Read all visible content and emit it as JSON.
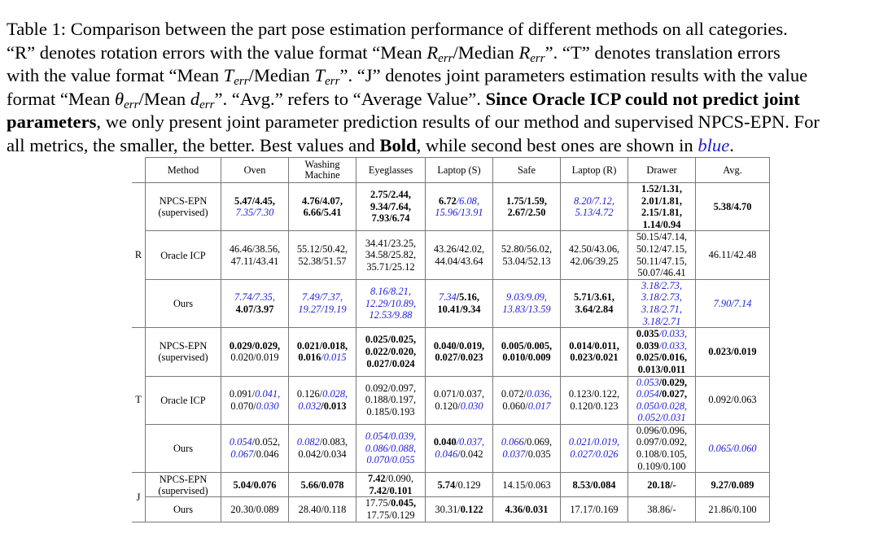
{
  "caption": {
    "label": "Table 1:",
    "text_1": "Comparison between the part pose estimation performance of different methods on all categories.",
    "text_2a": "“R” denotes rotation errors with the value format “Mean ",
    "text_2b": "/Median ",
    "text_2c": "”. “T” denotes translation errors",
    "text_3a": "with the value format “Mean ",
    "text_3b": "/Median ",
    "text_3c": "”. “J” denotes joint parameters estimation results with the value",
    "text_4a": "format “Mean ",
    "text_4b": "/Mean ",
    "text_4c": "”. “Avg.” refers to “Average Value”. ",
    "text_4d": "Since Oracle ICP could not predict joint",
    "text_5a": "parameters",
    "text_5b": ", we only present joint parameter prediction results of our method and supervised NPCS-EPN. For",
    "text_6a": "all metrics, the smaller, the better. Best values and ",
    "text_6b": "Bold",
    "text_6c": ", while second best ones are shown in ",
    "text_6d": "blue",
    "text_6e": ".",
    "sym_R": "R",
    "sym_T": "T",
    "sym_theta": "θ",
    "sym_d": "d",
    "sub_err": "err"
  },
  "table": {
    "headers": [
      "Method",
      "Oven",
      "Washing Machine",
      "Eyeglasses",
      "Laptop (S)",
      "Safe",
      "Laptop (R)",
      "Drawer",
      "Avg."
    ],
    "groups": [
      "R",
      "T",
      "J"
    ],
    "methods": {
      "npcs": "NPCS-EPN (supervised)",
      "icp": "Oracle ICP",
      "ours": "Ours"
    },
    "rows": [
      {
        "group": "R",
        "method": "npcs",
        "cells": [
          [
            [
              [
                "5.47/4.45,",
                "b"
              ]
            ],
            [
              [
                "7.35/7.30",
                "u"
              ]
            ]
          ],
          [
            [
              [
                "4.76/4.07,",
                "b"
              ]
            ],
            [
              [
                "6.66/5.41",
                "b"
              ]
            ]
          ],
          [
            [
              [
                "2.75/2.44,",
                "b"
              ]
            ],
            [
              [
                "9.34/7.64,",
                "b"
              ]
            ],
            [
              [
                "7.93/6.74",
                "b"
              ]
            ]
          ],
          [
            [
              [
                "6.72",
                "b"
              ],
              [
                "/6.08,",
                "u"
              ]
            ],
            [
              [
                "15.96/13.91",
                "u"
              ]
            ]
          ],
          [
            [
              [
                "1.75/1.59,",
                "b"
              ]
            ],
            [
              [
                "2.67/2.50",
                "b"
              ]
            ]
          ],
          [
            [
              [
                "8.20/7.12,",
                "u"
              ]
            ],
            [
              [
                "5.13/4.72",
                "u"
              ]
            ]
          ],
          [
            [
              [
                "1.52/1.31,",
                "b"
              ]
            ],
            [
              [
                "2.01/1.81,",
                "b"
              ]
            ],
            [
              [
                "2.15/1.81,",
                "b"
              ]
            ],
            [
              [
                "1.14/0.94",
                "b"
              ]
            ]
          ],
          [
            [
              [
                "5.38/4.70",
                "b"
              ]
            ]
          ]
        ]
      },
      {
        "group": "R",
        "method": "icp",
        "cells": [
          [
            [
              [
                "46.46/38.56,",
                ""
              ]
            ],
            [
              [
                "47.11/43.41",
                ""
              ]
            ]
          ],
          [
            [
              [
                "55.12/50.42,",
                ""
              ]
            ],
            [
              [
                "52.38/51.57",
                ""
              ]
            ]
          ],
          [
            [
              [
                "34.41/23.25,",
                ""
              ]
            ],
            [
              [
                "34.58/25.82,",
                ""
              ]
            ],
            [
              [
                "35.71/25.12",
                ""
              ]
            ]
          ],
          [
            [
              [
                "43.26/42.02,",
                ""
              ]
            ],
            [
              [
                "44.04/43.64",
                ""
              ]
            ]
          ],
          [
            [
              [
                "52.80/56.02,",
                ""
              ]
            ],
            [
              [
                "53.04/52.13",
                ""
              ]
            ]
          ],
          [
            [
              [
                "42.50/43.06,",
                ""
              ]
            ],
            [
              [
                "42.06/39.25",
                ""
              ]
            ]
          ],
          [
            [
              [
                "50.15/47.14,",
                ""
              ]
            ],
            [
              [
                "50.12/47.15,",
                ""
              ]
            ],
            [
              [
                "50.11/47.15,",
                ""
              ]
            ],
            [
              [
                "50.07/46.41",
                ""
              ]
            ]
          ],
          [
            [
              [
                "46.11/42.48",
                ""
              ]
            ]
          ]
        ]
      },
      {
        "group": "R",
        "method": "ours",
        "cells": [
          [
            [
              [
                "7.74/7.35,",
                "u"
              ]
            ],
            [
              [
                "4.07/3.97",
                "b"
              ]
            ]
          ],
          [
            [
              [
                "7.49/7.37,",
                "u"
              ]
            ],
            [
              [
                "19.27/19.19",
                "u"
              ]
            ]
          ],
          [
            [
              [
                "8.16/8.21,",
                "u"
              ]
            ],
            [
              [
                "12.29/10.89,",
                "u"
              ]
            ],
            [
              [
                "12.53/9.88",
                "u"
              ]
            ]
          ],
          [
            [
              [
                "7.34",
                "u"
              ],
              [
                "/5.16,",
                "b"
              ]
            ],
            [
              [
                "10.41/9.34",
                "b"
              ]
            ]
          ],
          [
            [
              [
                "9.03/9.09,",
                "u"
              ]
            ],
            [
              [
                "13.83/13.59",
                "u"
              ]
            ]
          ],
          [
            [
              [
                "5.71/3.61,",
                "b"
              ]
            ],
            [
              [
                "3.64/2.84",
                "b"
              ]
            ]
          ],
          [
            [
              [
                "3.18/2.73,",
                "u"
              ]
            ],
            [
              [
                "3.18/2.73,",
                "u"
              ]
            ],
            [
              [
                "3.18/2.71,",
                "u"
              ]
            ],
            [
              [
                "3.18/2.71",
                "u"
              ]
            ]
          ],
          [
            [
              [
                "7.90/7.14",
                "u"
              ]
            ]
          ]
        ]
      },
      {
        "group": "T",
        "method": "npcs",
        "cells": [
          [
            [
              [
                "0.029/0.029,",
                "b"
              ]
            ],
            [
              [
                "0.020/0.019",
                ""
              ]
            ]
          ],
          [
            [
              [
                "0.021/0.018,",
                "b"
              ]
            ],
            [
              [
                "0.016",
                "b"
              ],
              [
                "/0.015",
                "u"
              ]
            ]
          ],
          [
            [
              [
                "0.025/0.025,",
                "b"
              ]
            ],
            [
              [
                "0.022/0.020,",
                "b"
              ]
            ],
            [
              [
                "0.027/0.024",
                "b"
              ]
            ]
          ],
          [
            [
              [
                "0.040/0.019,",
                "b"
              ]
            ],
            [
              [
                "0.027/0.023",
                "b"
              ]
            ]
          ],
          [
            [
              [
                "0.005/0.005,",
                "b"
              ]
            ],
            [
              [
                "0.010/0.009",
                "b"
              ]
            ]
          ],
          [
            [
              [
                "0.014/0.011,",
                "b"
              ]
            ],
            [
              [
                "0.023/0.021",
                "b"
              ]
            ]
          ],
          [
            [
              [
                "0.035",
                "b"
              ],
              [
                "/0.033,",
                "u"
              ]
            ],
            [
              [
                "0.039",
                "b"
              ],
              [
                "/0.033,",
                "u"
              ]
            ],
            [
              [
                "0.025/0.016,",
                "b"
              ]
            ],
            [
              [
                "0.013/0.011",
                "b"
              ]
            ]
          ],
          [
            [
              [
                "0.023/0.019",
                "b"
              ]
            ]
          ]
        ]
      },
      {
        "group": "T",
        "method": "icp",
        "cells": [
          [
            [
              [
                "0.091/",
                ""
              ],
              [
                "0.041,",
                "u"
              ]
            ],
            [
              [
                "0.070/",
                ""
              ],
              [
                "0.030",
                "u"
              ]
            ]
          ],
          [
            [
              [
                "0.126/",
                ""
              ],
              [
                "0.028,",
                "u"
              ]
            ],
            [
              [
                "0.032",
                "u"
              ],
              [
                "/0.013",
                "b"
              ]
            ]
          ],
          [
            [
              [
                "0.092/0.097,",
                ""
              ]
            ],
            [
              [
                "0.188/0.197,",
                ""
              ]
            ],
            [
              [
                "0.185/0.193",
                ""
              ]
            ]
          ],
          [
            [
              [
                "0.071/0.037,",
                ""
              ]
            ],
            [
              [
                "0.120/",
                ""
              ],
              [
                "0.030",
                "u"
              ]
            ]
          ],
          [
            [
              [
                "0.072/",
                ""
              ],
              [
                "0.036,",
                "u"
              ]
            ],
            [
              [
                "0.060/",
                ""
              ],
              [
                "0.017",
                "u"
              ]
            ]
          ],
          [
            [
              [
                "0.123/0.122,",
                ""
              ]
            ],
            [
              [
                "0.120/0.123",
                ""
              ]
            ]
          ],
          [
            [
              [
                "0.053",
                "u"
              ],
              [
                "/0.029,",
                "b"
              ]
            ],
            [
              [
                "0.054",
                "u"
              ],
              [
                "/0.027,",
                "b"
              ]
            ],
            [
              [
                "0.050/0.028,",
                "u"
              ]
            ],
            [
              [
                "0.052/0.031",
                "u"
              ]
            ]
          ],
          [
            [
              [
                "0.092/0.063",
                ""
              ]
            ]
          ]
        ]
      },
      {
        "group": "T",
        "method": "ours",
        "cells": [
          [
            [
              [
                "0.054",
                "u"
              ],
              [
                "/0.052,",
                ""
              ]
            ],
            [
              [
                "0.067",
                "u"
              ],
              [
                "/0.046",
                ""
              ]
            ]
          ],
          [
            [
              [
                "0.082",
                "u"
              ],
              [
                "/0.083,",
                ""
              ]
            ],
            [
              [
                "0.042/0.034",
                ""
              ]
            ]
          ],
          [
            [
              [
                "0.054/0.039,",
                "u"
              ]
            ],
            [
              [
                "0.086/0.088,",
                "u"
              ]
            ],
            [
              [
                "0.070/0.055",
                "u"
              ]
            ]
          ],
          [
            [
              [
                "0.040",
                "b"
              ],
              [
                "/0.037,",
                "u"
              ]
            ],
            [
              [
                "0.046",
                "u"
              ],
              [
                "/0.042",
                ""
              ]
            ]
          ],
          [
            [
              [
                "0.066",
                "u"
              ],
              [
                "/0.069,",
                ""
              ]
            ],
            [
              [
                "0.037",
                "u"
              ],
              [
                "/0.035",
                ""
              ]
            ]
          ],
          [
            [
              [
                "0.021/0.019,",
                "u"
              ]
            ],
            [
              [
                "0.027/0.026",
                "u"
              ]
            ]
          ],
          [
            [
              [
                "0.096/0.096,",
                ""
              ]
            ],
            [
              [
                "0.097/0.092,",
                ""
              ]
            ],
            [
              [
                "0.108/0.105,",
                ""
              ]
            ],
            [
              [
                "0.109/0.100",
                ""
              ]
            ]
          ],
          [
            [
              [
                "0.065/0.060",
                "u"
              ]
            ]
          ]
        ]
      },
      {
        "group": "J",
        "method": "npcs",
        "cells": [
          [
            [
              [
                "5.04/0.076",
                "b"
              ]
            ]
          ],
          [
            [
              [
                "5.66/0.078",
                "b"
              ]
            ]
          ],
          [
            [
              [
                "7.42",
                "b"
              ],
              [
                "/0.090,",
                ""
              ]
            ],
            [
              [
                "7.42/0.101",
                "b"
              ]
            ]
          ],
          [
            [
              [
                "5.74",
                "b"
              ],
              [
                "/0.129",
                ""
              ]
            ]
          ],
          [
            [
              [
                "14.15/0.063",
                ""
              ]
            ]
          ],
          [
            [
              [
                "8.53/0.084",
                "b"
              ]
            ]
          ],
          [
            [
              [
                "20.18/-",
                "b"
              ]
            ]
          ],
          [
            [
              [
                "9.27/0.089",
                "b"
              ]
            ]
          ]
        ]
      },
      {
        "group": "J",
        "method": "ours",
        "cells": [
          [
            [
              [
                "20.30/0.089",
                ""
              ]
            ]
          ],
          [
            [
              [
                "28.40/0.118",
                ""
              ]
            ]
          ],
          [
            [
              [
                "17.75/",
                ""
              ],
              [
                "0.045,",
                "b"
              ]
            ],
            [
              [
                "17.75/0.129",
                ""
              ]
            ]
          ],
          [
            [
              [
                "30.31/",
                ""
              ],
              [
                "0.122",
                "b"
              ]
            ]
          ],
          [
            [
              [
                "4.36/0.031",
                "b"
              ]
            ]
          ],
          [
            [
              [
                "17.17/0.169",
                ""
              ]
            ]
          ],
          [
            [
              [
                "38.86/-",
                ""
              ]
            ]
          ],
          [
            [
              [
                "21.86/0.100",
                ""
              ]
            ]
          ]
        ]
      }
    ]
  }
}
